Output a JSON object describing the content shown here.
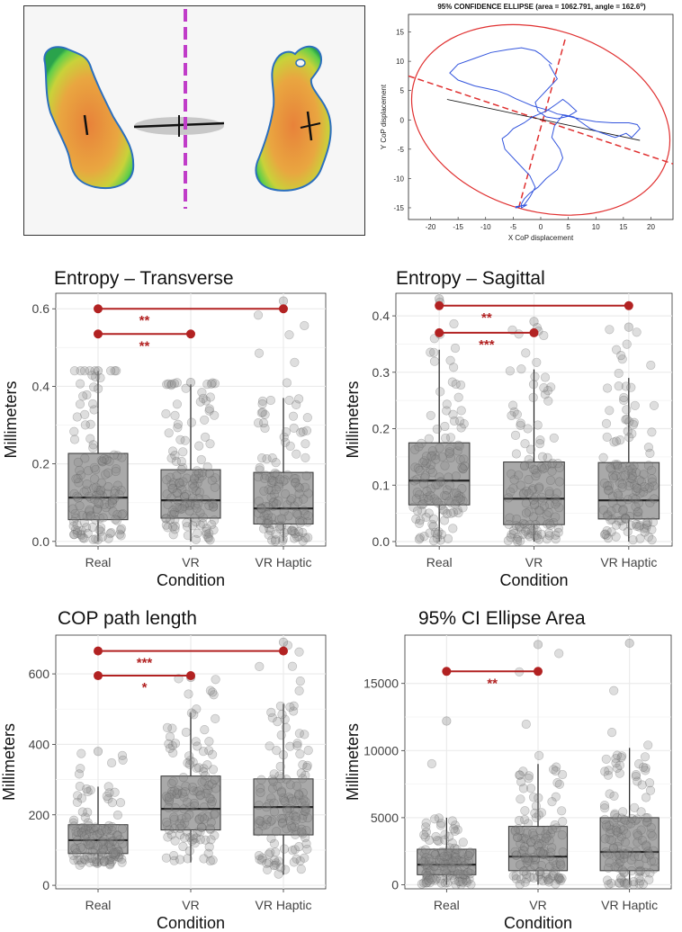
{
  "colors": {
    "point": "#888888",
    "box_fill": "#a9a9a9",
    "sig": "#b22222",
    "grid": "#ebebeb",
    "ellipse": "#e03030",
    "trace": "#3355dd"
  },
  "footprint_panel": {
    "label": "Pressure footprint heatmap"
  },
  "chart_data": [
    {
      "type": "line",
      "id": "ellipse",
      "title": "95% CONFIDENCE ELLIPSE (area = 1062.791, angle = 162.6°)",
      "title_main": "95% CONFIDENCE ELLIPSE (area = 1062.791, angle = 162.6",
      "title_sup": "o",
      "title_end": ")",
      "xlabel": "X CoP displacement",
      "ylabel": "Y CoP displacement",
      "xlim": [
        -24,
        24
      ],
      "ylim": [
        -17,
        18
      ],
      "xticks": [
        -20,
        -15,
        -10,
        -5,
        0,
        5,
        10,
        15,
        20
      ],
      "yticks": [
        -15,
        -10,
        -5,
        0,
        5,
        10,
        15
      ],
      "ellipse": {
        "cx": 0,
        "cy": 0,
        "a": 24,
        "b": 15.5,
        "angle_deg": -17.4
      },
      "major_axis": {
        "x": [
          -24,
          24
        ],
        "y": [
          7.5,
          -7.5
        ]
      },
      "minor_axis": {
        "x": [
          -4,
          4.5
        ],
        "y": [
          -15,
          14
        ]
      },
      "regression_line": {
        "x": [
          -17,
          18
        ],
        "y": [
          3.5,
          -3.5
        ]
      },
      "trace": {
        "x": [
          2,
          0.8,
          0,
          -1,
          -3.5,
          -6,
          -9,
          -12,
          -15,
          -16.5,
          -15,
          -12,
          -8,
          -6,
          -4.5,
          -3,
          -1.5,
          0,
          1.5,
          3,
          4.5,
          6,
          7.5,
          9,
          11,
          13.5,
          15.5,
          16.5,
          18,
          17.5,
          16,
          13,
          10,
          7,
          4,
          2.5,
          2,
          3.5,
          4,
          3,
          1,
          -0.5,
          -2,
          -3,
          -3.5,
          -3.5,
          -2.5,
          -4.5,
          -4.5,
          -3,
          -2,
          -1,
          -2,
          -4,
          -6.5,
          -7,
          -6,
          -5,
          -3,
          -1.5,
          1,
          3,
          4,
          5,
          6.5,
          5,
          3,
          1,
          -0.5,
          -1,
          0,
          1.5,
          3,
          1.5
        ],
        "y": [
          9.5,
          10.5,
          11.2,
          11.8,
          12.3,
          12.0,
          11.5,
          10.5,
          9.5,
          8.0,
          6.8,
          5.8,
          5.0,
          4.3,
          3.6,
          3.0,
          2.4,
          2.0,
          1.6,
          1.0,
          0.8,
          0.5,
          -0.5,
          -1.5,
          -2.2,
          -3.0,
          -2.3,
          -3.0,
          -1.5,
          -0.8,
          -0.5,
          -0.5,
          -0.3,
          0.2,
          0.8,
          -1.0,
          -3.0,
          -5.0,
          -6.5,
          -8.5,
          -10.0,
          -11.5,
          -12.5,
          -13.5,
          -14.3,
          -15.0,
          -14.5,
          -14.8,
          -15.0,
          -14.5,
          -13.2,
          -11.5,
          -9.5,
          -7.5,
          -5.0,
          -3.2,
          -2.5,
          -1.5,
          -0.5,
          0.5,
          1.5,
          2.8,
          3.5,
          2.8,
          1.5,
          0.6,
          0.2,
          0.5,
          1.5,
          3.0,
          4.0,
          5.5,
          7.0,
          9.5
        ]
      }
    },
    {
      "type": "box",
      "id": "entropy_transverse",
      "title": "Entropy – Transverse",
      "ylabel": "Millimeters",
      "xlabel": "Condition",
      "categories": [
        "Real",
        "VR",
        "VR Haptic"
      ],
      "ylim": [
        -0.012,
        0.64
      ],
      "yticks": [
        0.0,
        0.2,
        0.4,
        0.6
      ],
      "ytick_labels": [
        "0.0",
        "0.2",
        "0.4",
        "0.6"
      ],
      "boxes": [
        {
          "whisker_low": 0.0,
          "q1": 0.056,
          "median": 0.113,
          "q3": 0.227,
          "whisker_high": 0.44
        },
        {
          "whisker_low": 0.0,
          "q1": 0.06,
          "median": 0.106,
          "q3": 0.185,
          "whisker_high": 0.405
        },
        {
          "whisker_low": 0.0,
          "q1": 0.045,
          "median": 0.085,
          "q3": 0.178,
          "whisker_high": 0.37
        }
      ],
      "point_max": [
        0.44,
        0.41,
        0.62
      ],
      "significance": [
        {
          "from": 0,
          "to": 2,
          "y": 0.6,
          "label": "**"
        },
        {
          "from": 0,
          "to": 1,
          "y": 0.535,
          "label": "**"
        }
      ]
    },
    {
      "type": "box",
      "id": "entropy_sagittal",
      "title": "Entropy – Sagittal",
      "ylabel": "Millimeters",
      "xlabel": "Condition",
      "categories": [
        "Real",
        "VR",
        "VR Haptic"
      ],
      "ylim": [
        -0.008,
        0.44
      ],
      "yticks": [
        0.0,
        0.1,
        0.2,
        0.3,
        0.4
      ],
      "ytick_labels": [
        "0.0",
        "0.1",
        "0.2",
        "0.3",
        "0.4"
      ],
      "boxes": [
        {
          "whisker_low": 0.0,
          "q1": 0.065,
          "median": 0.108,
          "q3": 0.175,
          "whisker_high": 0.34
        },
        {
          "whisker_low": 0.0,
          "q1": 0.03,
          "median": 0.076,
          "q3": 0.141,
          "whisker_high": 0.305
        },
        {
          "whisker_low": 0.0,
          "q1": 0.04,
          "median": 0.073,
          "q3": 0.14,
          "whisker_high": 0.29
        }
      ],
      "point_max": [
        0.43,
        0.39,
        0.38
      ],
      "significance": [
        {
          "from": 0,
          "to": 2,
          "y": 0.418,
          "label": "**"
        },
        {
          "from": 0,
          "to": 1,
          "y": 0.37,
          "label": "***"
        }
      ]
    },
    {
      "type": "box",
      "id": "cop_path_length",
      "title": "COP path length",
      "ylabel": "Millimeters",
      "xlabel": "Condition",
      "categories": [
        "Real",
        "VR",
        "VR Haptic"
      ],
      "ylim": [
        -10,
        710
      ],
      "yticks": [
        0,
        200,
        400,
        600
      ],
      "ytick_labels": [
        "0",
        "200",
        "400",
        "600"
      ],
      "boxes": [
        {
          "whisker_low": 55,
          "q1": 90,
          "median": 128,
          "q3": 172,
          "whisker_high": 280
        },
        {
          "whisker_low": 65,
          "q1": 157,
          "median": 217,
          "q3": 310,
          "whisker_high": 490
        },
        {
          "whisker_low": 30,
          "q1": 143,
          "median": 222,
          "q3": 302,
          "whisker_high": 515
        }
      ],
      "point_max": [
        380,
        590,
        690
      ],
      "significance": [
        {
          "from": 0,
          "to": 2,
          "y": 665,
          "label": "***"
        },
        {
          "from": 0,
          "to": 1,
          "y": 595,
          "label": "*"
        }
      ]
    },
    {
      "type": "box",
      "id": "ci_ellipse_area",
      "title": "95% CI Ellipse Area",
      "ylabel": "Millimeters",
      "xlabel": "Condition",
      "categories": [
        "Real",
        "VR",
        "VR Haptic"
      ],
      "ylim": [
        -300,
        18600
      ],
      "yticks": [
        0,
        5000,
        10000,
        15000
      ],
      "ytick_labels": [
        "0",
        "5000",
        "10000",
        "15000"
      ],
      "boxes": [
        {
          "whisker_low": 0,
          "q1": 750,
          "median": 1500,
          "q3": 2650,
          "whisker_high": 5000
        },
        {
          "whisker_low": 0,
          "q1": 1050,
          "median": 2100,
          "q3": 4350,
          "whisker_high": 9000
        },
        {
          "whisker_low": 0,
          "q1": 1050,
          "median": 2450,
          "q3": 5000,
          "whisker_high": 10200
        }
      ],
      "point_max": [
        12200,
        17900,
        18000
      ],
      "significance": [
        {
          "from": 0,
          "to": 1,
          "y": 15900,
          "label": "**"
        }
      ]
    }
  ]
}
